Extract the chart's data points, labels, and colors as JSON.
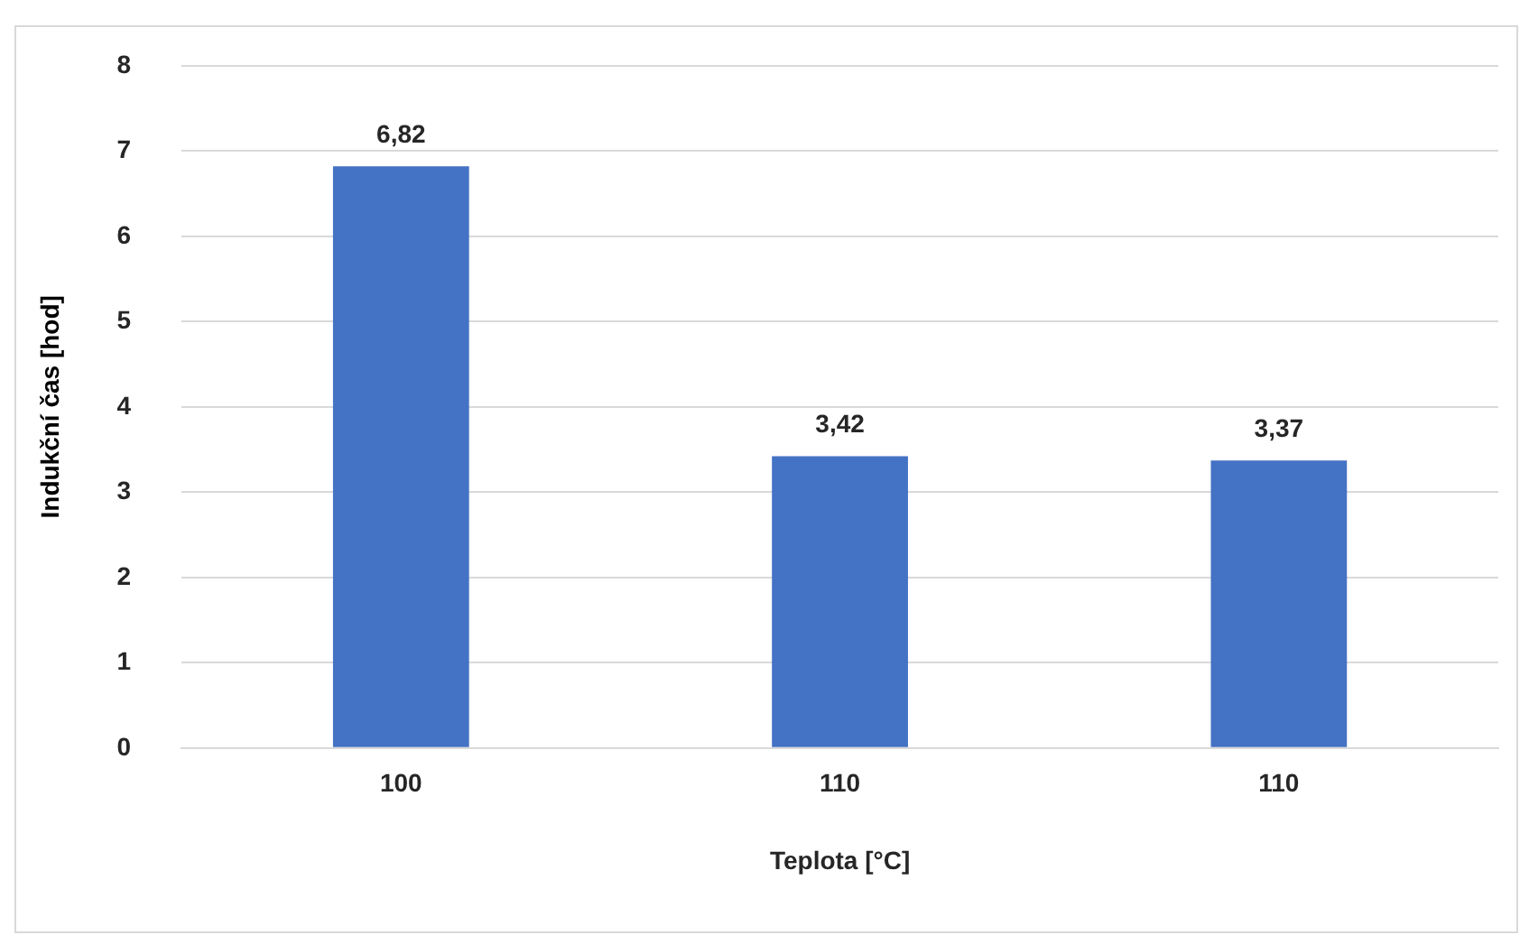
{
  "chart_data": {
    "type": "bar",
    "xlabel": "Teplota [°C]",
    "ylabel": "Indukční čas [hod]",
    "categories": [
      "100",
      "110",
      "110"
    ],
    "values": [
      6.82,
      3.42,
      3.37
    ],
    "value_labels": [
      "6,82",
      "3,42",
      "3,37"
    ],
    "color": "#4472c4",
    "ylim": [
      0,
      8
    ],
    "yticks": [
      0,
      1,
      2,
      3,
      4,
      5,
      6,
      7,
      8
    ],
    "grid": "y",
    "legend": false
  }
}
